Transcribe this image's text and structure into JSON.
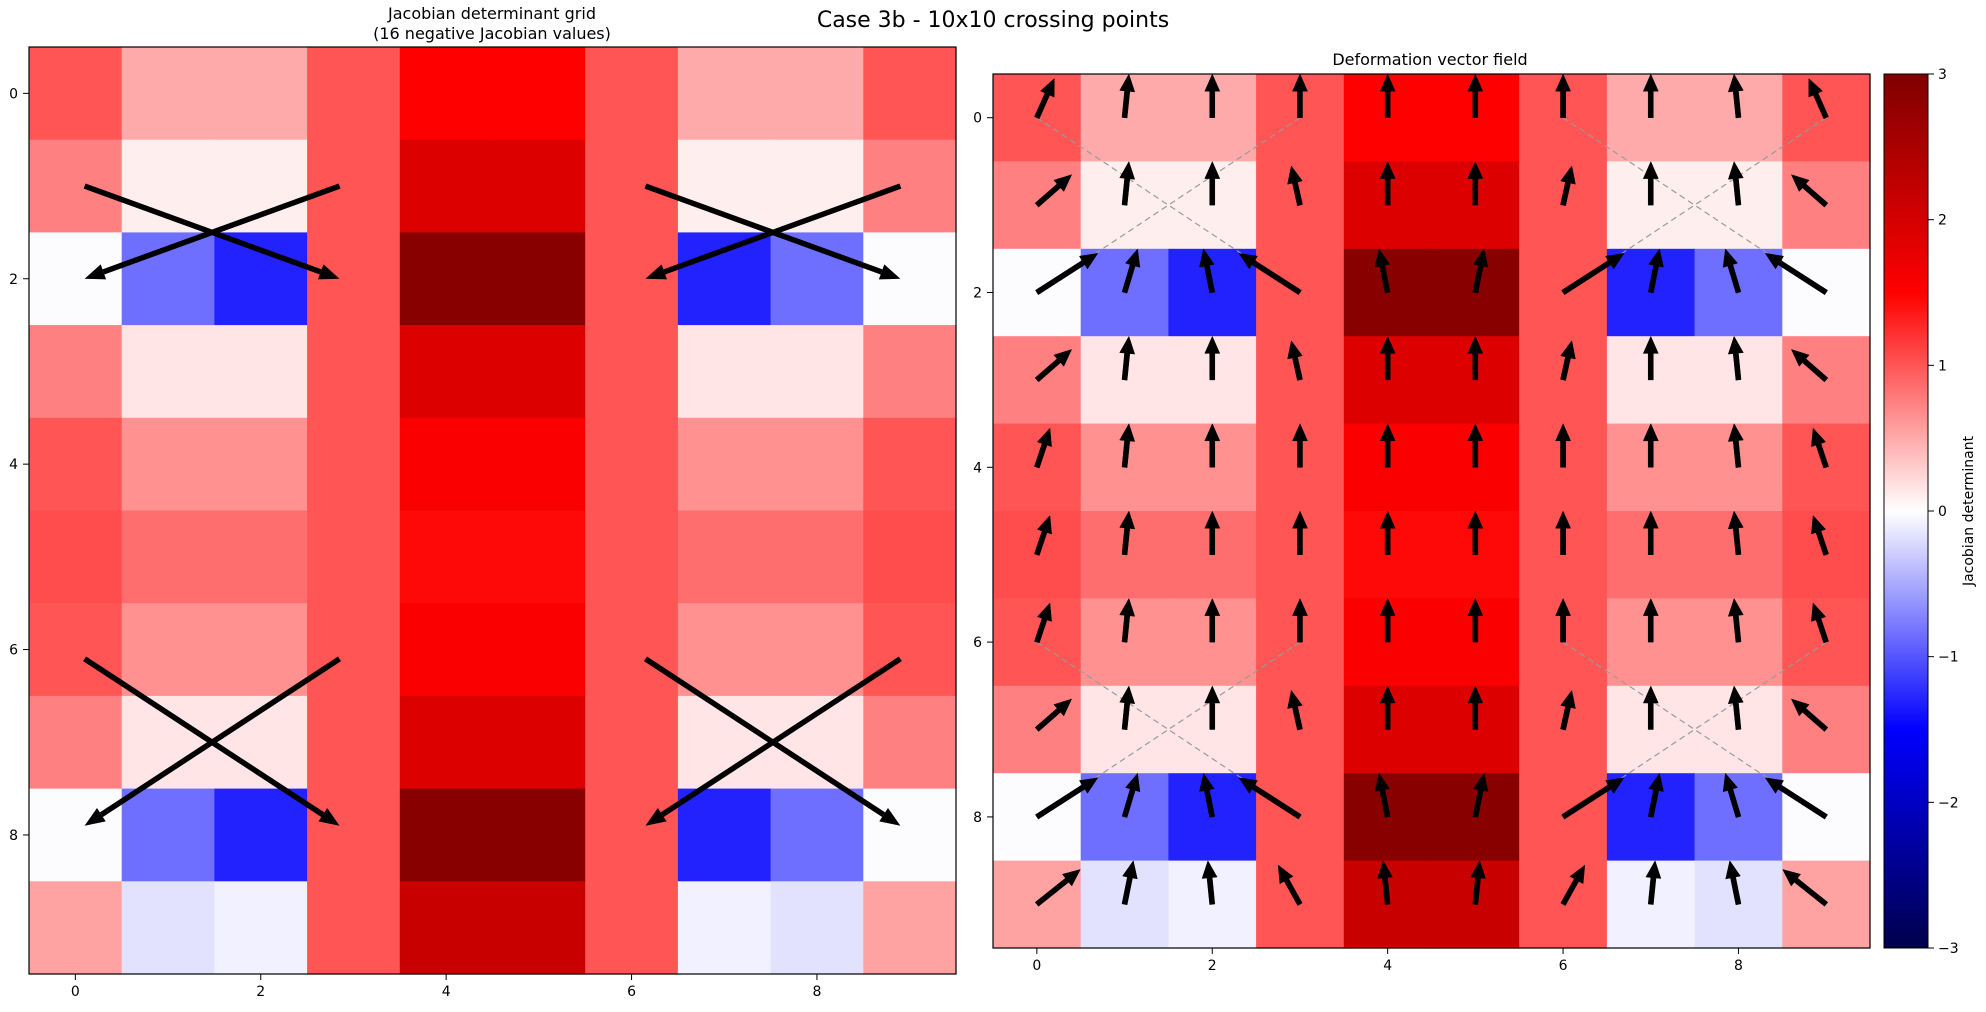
{
  "suptitle": "Case 3b - 10x10 crossing points",
  "chart_data": [
    {
      "type": "heatmap",
      "title_line1": "Jacobian determinant grid",
      "title_line2": "(16 negative Jacobian values)",
      "xticks": [
        0,
        2,
        4,
        6,
        8
      ],
      "yticks": [
        0,
        2,
        4,
        6,
        8
      ],
      "xlim": [
        -0.5,
        9.5
      ],
      "ylim": [
        9.5,
        -0.5
      ],
      "clim": [
        -3,
        3
      ],
      "colormap": "seismic",
      "values": [
        [
          1.0,
          0.5,
          0.5,
          1.0,
          1.5,
          1.5,
          1.0,
          0.5,
          0.5,
          1.0
        ],
        [
          0.75,
          0.1,
          0.1,
          1.0,
          1.9,
          1.9,
          1.0,
          0.1,
          0.1,
          0.75
        ],
        [
          -0.02,
          -0.85,
          -1.3,
          1.0,
          2.9,
          2.9,
          1.0,
          -1.3,
          -0.85,
          -0.02
        ],
        [
          0.75,
          0.15,
          0.15,
          1.0,
          1.9,
          1.9,
          1.0,
          0.15,
          0.15,
          0.75
        ],
        [
          1.0,
          0.65,
          0.65,
          1.0,
          1.55,
          1.55,
          1.0,
          0.65,
          0.65,
          1.0
        ],
        [
          1.05,
          0.85,
          0.85,
          1.0,
          1.45,
          1.45,
          1.0,
          0.85,
          0.85,
          1.05
        ],
        [
          1.0,
          0.65,
          0.65,
          1.0,
          1.55,
          1.55,
          1.0,
          0.65,
          0.65,
          1.0
        ],
        [
          0.75,
          0.15,
          0.15,
          1.0,
          1.9,
          1.9,
          1.0,
          0.15,
          0.15,
          0.75
        ],
        [
          -0.02,
          -0.85,
          -1.3,
          1.0,
          2.9,
          2.9,
          1.0,
          -1.3,
          -0.85,
          -0.02
        ],
        [
          0.55,
          -0.17,
          -0.08,
          1.0,
          2.15,
          2.15,
          1.0,
          -0.08,
          -0.17,
          0.55
        ]
      ],
      "crossing_arrows": [
        {
          "from": [
            0.1,
            1.0
          ],
          "to": [
            2.85,
            2.0
          ]
        },
        {
          "from": [
            2.85,
            1.0
          ],
          "to": [
            0.1,
            2.0
          ]
        },
        {
          "from": [
            6.15,
            1.0
          ],
          "to": [
            8.9,
            2.0
          ]
        },
        {
          "from": [
            8.9,
            1.0
          ],
          "to": [
            6.15,
            2.0
          ]
        },
        {
          "from": [
            0.1,
            6.1
          ],
          "to": [
            2.85,
            7.9
          ]
        },
        {
          "from": [
            2.85,
            6.1
          ],
          "to": [
            0.1,
            7.9
          ]
        },
        {
          "from": [
            6.15,
            6.1
          ],
          "to": [
            8.9,
            7.9
          ]
        },
        {
          "from": [
            8.9,
            6.1
          ],
          "to": [
            6.15,
            7.9
          ]
        }
      ]
    },
    {
      "type": "heatmap",
      "title": "Deformation vector field",
      "xticks": [
        0,
        2,
        4,
        6,
        8
      ],
      "yticks": [
        0,
        2,
        4,
        6,
        8
      ],
      "xlim": [
        -0.5,
        9.5
      ],
      "ylim": [
        9.5,
        -0.5
      ],
      "clim": [
        -3,
        3
      ],
      "colormap": "seismic",
      "same_values_as_left": true,
      "vectors": [
        [
          [
            0.2,
            -0.45
          ],
          [
            0.05,
            -0.5
          ],
          [
            0,
            -0.5
          ],
          [
            0,
            -0.5
          ],
          [
            0,
            -0.5
          ],
          [
            0,
            -0.5
          ],
          [
            0,
            -0.5
          ],
          [
            0,
            -0.5
          ],
          [
            -0.05,
            -0.5
          ],
          [
            -0.2,
            -0.45
          ]
        ],
        [
          [
            0.4,
            -0.35
          ],
          [
            0.05,
            -0.5
          ],
          [
            0,
            -0.5
          ],
          [
            -0.1,
            -0.45
          ],
          [
            0,
            -0.5
          ],
          [
            0,
            -0.5
          ],
          [
            0.1,
            -0.45
          ],
          [
            0,
            -0.5
          ],
          [
            -0.05,
            -0.5
          ],
          [
            -0.4,
            -0.35
          ]
        ],
        [
          [
            0.7,
            -0.45
          ],
          [
            0.15,
            -0.5
          ],
          [
            -0.1,
            -0.5
          ],
          [
            -0.7,
            -0.45
          ],
          [
            -0.1,
            -0.5
          ],
          [
            0.1,
            -0.5
          ],
          [
            0.7,
            -0.45
          ],
          [
            0.1,
            -0.5
          ],
          [
            -0.15,
            -0.5
          ],
          [
            -0.7,
            -0.45
          ]
        ],
        [
          [
            0.4,
            -0.35
          ],
          [
            0.05,
            -0.5
          ],
          [
            0,
            -0.5
          ],
          [
            -0.1,
            -0.45
          ],
          [
            0,
            -0.5
          ],
          [
            0,
            -0.5
          ],
          [
            0.1,
            -0.45
          ],
          [
            0,
            -0.5
          ],
          [
            -0.05,
            -0.5
          ],
          [
            -0.4,
            -0.35
          ]
        ],
        [
          [
            0.15,
            -0.45
          ],
          [
            0.05,
            -0.5
          ],
          [
            0,
            -0.5
          ],
          [
            0,
            -0.5
          ],
          [
            0,
            -0.5
          ],
          [
            0,
            -0.5
          ],
          [
            0,
            -0.5
          ],
          [
            0,
            -0.5
          ],
          [
            -0.05,
            -0.5
          ],
          [
            -0.15,
            -0.45
          ]
        ],
        [
          [
            0.15,
            -0.45
          ],
          [
            0.05,
            -0.5
          ],
          [
            0,
            -0.5
          ],
          [
            0,
            -0.5
          ],
          [
            0,
            -0.5
          ],
          [
            0,
            -0.5
          ],
          [
            0,
            -0.5
          ],
          [
            0,
            -0.5
          ],
          [
            -0.05,
            -0.5
          ],
          [
            -0.15,
            -0.45
          ]
        ],
        [
          [
            0.15,
            -0.45
          ],
          [
            0.05,
            -0.5
          ],
          [
            0,
            -0.5
          ],
          [
            0,
            -0.5
          ],
          [
            0,
            -0.5
          ],
          [
            0,
            -0.5
          ],
          [
            0,
            -0.5
          ],
          [
            0,
            -0.5
          ],
          [
            -0.05,
            -0.5
          ],
          [
            -0.15,
            -0.45
          ]
        ],
        [
          [
            0.4,
            -0.35
          ],
          [
            0.05,
            -0.5
          ],
          [
            0,
            -0.5
          ],
          [
            -0.1,
            -0.45
          ],
          [
            0,
            -0.5
          ],
          [
            0,
            -0.5
          ],
          [
            0.1,
            -0.45
          ],
          [
            0,
            -0.5
          ],
          [
            -0.05,
            -0.5
          ],
          [
            -0.4,
            -0.35
          ]
        ],
        [
          [
            0.7,
            -0.45
          ],
          [
            0.15,
            -0.5
          ],
          [
            -0.1,
            -0.5
          ],
          [
            -0.7,
            -0.45
          ],
          [
            -0.1,
            -0.5
          ],
          [
            0.1,
            -0.5
          ],
          [
            0.7,
            -0.45
          ],
          [
            0.1,
            -0.5
          ],
          [
            -0.15,
            -0.5
          ],
          [
            -0.7,
            -0.45
          ]
        ],
        [
          [
            0.5,
            -0.4
          ],
          [
            0.1,
            -0.5
          ],
          [
            -0.05,
            -0.5
          ],
          [
            -0.25,
            -0.45
          ],
          [
            -0.05,
            -0.5
          ],
          [
            0.05,
            -0.5
          ],
          [
            0.25,
            -0.45
          ],
          [
            0.05,
            -0.5
          ],
          [
            -0.1,
            -0.5
          ],
          [
            -0.5,
            -0.4
          ]
        ]
      ],
      "guide_lines": [
        {
          "from": [
            0,
            0.0
          ],
          "to": [
            3,
            2.0
          ]
        },
        {
          "from": [
            3,
            0.0
          ],
          "to": [
            0,
            2.0
          ]
        },
        {
          "from": [
            6,
            0.0
          ],
          "to": [
            9,
            2.0
          ]
        },
        {
          "from": [
            9,
            0.0
          ],
          "to": [
            6,
            2.0
          ]
        },
        {
          "from": [
            0,
            6.0
          ],
          "to": [
            3,
            8.0
          ]
        },
        {
          "from": [
            3,
            6.0
          ],
          "to": [
            0,
            8.0
          ]
        },
        {
          "from": [
            6,
            6.0
          ],
          "to": [
            9,
            8.0
          ]
        },
        {
          "from": [
            9,
            6.0
          ],
          "to": [
            6,
            8.0
          ]
        }
      ]
    }
  ],
  "colorbar": {
    "label": "Jacobian determinant",
    "ticks": [
      3,
      2,
      1,
      0,
      -1,
      -2,
      -3
    ],
    "tick_labels": [
      "3",
      "2",
      "1",
      "0",
      "−1",
      "−2",
      "−3"
    ]
  }
}
